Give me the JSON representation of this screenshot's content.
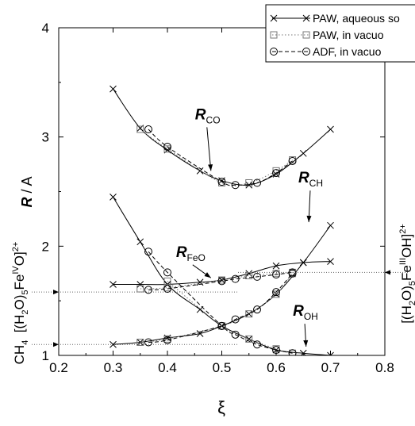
{
  "chart_data": {
    "type": "line",
    "xlabel": "ξ",
    "ylabel_main": "R",
    "ylabel_unit": " / A",
    "xlim": [
      0.2,
      0.8
    ],
    "ylim": [
      1,
      4
    ],
    "x_ticks": [
      "0.2",
      "0.3",
      "0.4",
      "0.5",
      "0.6",
      "0.7",
      "0.8"
    ],
    "y_ticks": [
      "1",
      "2",
      "3",
      "4"
    ],
    "grid": false,
    "legend_position": "top-right",
    "legend": [
      {
        "label": "PAW, aqueous so",
        "marker": "cross",
        "dash": "solid"
      },
      {
        "label": "PAW, in vacuo",
        "marker": "square",
        "dash": "dotted"
      },
      {
        "label": "ADF, in vacuo",
        "marker": "circle",
        "dash": "dashed"
      }
    ],
    "left_labels": {
      "fe4": {
        "b1": "[(H",
        "s1": "2",
        "b2": "O)",
        "s2": "5",
        "b3": "Fe",
        "sup1": "IV",
        "b4": "O]",
        "sup2": "2+"
      },
      "ch4": {
        "b1": "CH",
        "s1": "4"
      }
    },
    "right_label": {
      "b1": "[(H",
      "s1": "2",
      "b2": "O)",
      "s2": "5",
      "b3": "Fe",
      "sup1": "III",
      "b4": "OH]",
      "sup2": "2+"
    },
    "reference_lines": [
      {
        "name": "fe4-ref",
        "y": 1.58
      },
      {
        "name": "fe3-ref",
        "y": 1.76
      },
      {
        "name": "ch4-ref",
        "y": 1.1
      }
    ],
    "annotations": [
      {
        "name": "R-CO",
        "main": "R",
        "sub": "CO",
        "x": 0.48,
        "y": 3.22,
        "arrow_to": [
          0.48,
          2.69
        ]
      },
      {
        "name": "R-CH",
        "main": "R",
        "sub": "CH",
        "x": 0.67,
        "y": 2.64,
        "arrow_to": [
          0.66,
          2.22
        ]
      },
      {
        "name": "R-FeO",
        "main": "R",
        "sub": "FeO",
        "x": 0.445,
        "y": 1.96,
        "arrow_to": [
          0.48,
          1.71
        ]
      },
      {
        "name": "R-OH",
        "main": "R",
        "sub": "OH",
        "x": 0.66,
        "y": 1.42,
        "arrow_to": [
          0.655,
          1.08
        ]
      }
    ],
    "series": [
      {
        "group": "R_CO",
        "method": "PAW, aqueous so",
        "marker": "cross",
        "dash": "solid",
        "x": [
          0.3,
          0.35,
          0.4,
          0.46,
          0.5,
          0.55,
          0.6,
          0.65,
          0.7
        ],
        "y": [
          3.44,
          3.08,
          2.88,
          2.69,
          2.6,
          2.56,
          2.66,
          2.85,
          3.07
        ]
      },
      {
        "group": "R_CO",
        "method": "PAW, in vacuo",
        "marker": "square",
        "dash": "dotted",
        "x": [
          0.35,
          0.4,
          0.5,
          0.55,
          0.6,
          0.63
        ],
        "y": [
          3.07,
          2.89,
          2.58,
          2.58,
          2.69,
          2.79
        ]
      },
      {
        "group": "R_CO",
        "method": "ADF, in vacuo",
        "marker": "circle",
        "dash": "dashed",
        "x": [
          0.365,
          0.4,
          0.5,
          0.525,
          0.565,
          0.6,
          0.63
        ],
        "y": [
          3.07,
          2.91,
          2.59,
          2.56,
          2.58,
          2.67,
          2.78
        ]
      },
      {
        "group": "R_OH",
        "method": "PAW, aqueous so",
        "marker": "cross",
        "dash": "solid",
        "x": [
          0.3,
          0.35,
          0.4,
          0.46,
          0.5,
          0.55,
          0.6,
          0.65,
          0.7
        ],
        "y": [
          2.45,
          2.04,
          1.65,
          1.42,
          1.27,
          1.15,
          1.05,
          1.02,
          1.0
        ]
      },
      {
        "group": "R_OH",
        "method": "PAW, in vacuo",
        "marker": "square",
        "dash": "dotted",
        "x": [
          0.4,
          0.5,
          0.55,
          0.6,
          0.63
        ],
        "y": [
          1.68,
          1.27,
          1.15,
          1.06,
          1.02
        ]
      },
      {
        "group": "R_OH",
        "method": "ADF, in vacuo",
        "marker": "circle",
        "dash": "dashed",
        "x": [
          0.365,
          0.4,
          0.5,
          0.525,
          0.565,
          0.6,
          0.63
        ],
        "y": [
          1.95,
          1.76,
          1.27,
          1.19,
          1.1,
          1.05,
          1.02
        ]
      },
      {
        "group": "R_FeO",
        "method": "PAW, aqueous so",
        "marker": "cross",
        "dash": "solid",
        "x": [
          0.3,
          0.35,
          0.4,
          0.46,
          0.5,
          0.55,
          0.6,
          0.65,
          0.7
        ],
        "y": [
          1.65,
          1.65,
          1.65,
          1.67,
          1.69,
          1.75,
          1.82,
          1.85,
          1.86
        ]
      },
      {
        "group": "R_FeO",
        "method": "PAW, in vacuo",
        "marker": "square",
        "dash": "dotted",
        "x": [
          0.35,
          0.4,
          0.5,
          0.55,
          0.6,
          0.63
        ],
        "y": [
          1.61,
          1.62,
          1.69,
          1.73,
          1.75,
          1.76
        ]
      },
      {
        "group": "R_FeO",
        "method": "ADF, in vacuo",
        "marker": "circle",
        "dash": "dashed",
        "x": [
          0.365,
          0.4,
          0.5,
          0.525,
          0.565,
          0.6,
          0.63
        ],
        "y": [
          1.6,
          1.61,
          1.68,
          1.7,
          1.72,
          1.74,
          1.76
        ]
      },
      {
        "group": "R_CH",
        "method": "PAW, aqueous so",
        "marker": "cross",
        "dash": "solid",
        "x": [
          0.3,
          0.35,
          0.4,
          0.46,
          0.5,
          0.55,
          0.6,
          0.65,
          0.7
        ],
        "y": [
          1.1,
          1.12,
          1.16,
          1.2,
          1.27,
          1.38,
          1.56,
          1.85,
          2.19
        ]
      },
      {
        "group": "R_CH",
        "method": "PAW, in vacuo",
        "marker": "square",
        "dash": "dotted",
        "x": [
          0.35,
          0.4,
          0.5,
          0.55,
          0.6,
          0.63
        ],
        "y": [
          1.12,
          1.15,
          1.27,
          1.38,
          1.56,
          1.75
        ]
      },
      {
        "group": "R_CH",
        "method": "ADF, in vacuo",
        "marker": "circle",
        "dash": "dashed",
        "x": [
          0.365,
          0.4,
          0.5,
          0.525,
          0.565,
          0.6,
          0.63
        ],
        "y": [
          1.12,
          1.14,
          1.27,
          1.33,
          1.42,
          1.58,
          1.75
        ]
      }
    ]
  }
}
